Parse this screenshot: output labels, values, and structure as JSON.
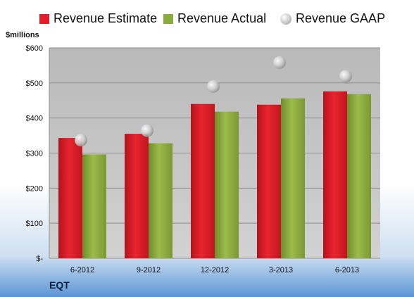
{
  "legend": {
    "estimate": "Revenue Estimate",
    "actual": "Revenue Actual",
    "gaap": "Revenue GAAP"
  },
  "units_label": "$millions",
  "brand": "EQT",
  "colors": {
    "estimate": "#e21e2b",
    "actual": "#8cab3e",
    "gaap": "#c8c8c8",
    "plot_background": "#c4c4c4"
  },
  "chart_data": {
    "type": "bar",
    "categories": [
      "6-2012",
      "9-2012",
      "12-2012",
      "3-2013",
      "6-2013"
    ],
    "series": [
      {
        "name": "Revenue Estimate",
        "values": [
          343,
          355,
          440,
          438,
          476
        ]
      },
      {
        "name": "Revenue Actual",
        "values": [
          296,
          328,
          418,
          456,
          468
        ]
      },
      {
        "name": "Revenue GAAP",
        "values": [
          337,
          364,
          490,
          558,
          519
        ]
      }
    ],
    "ylim": [
      0,
      600
    ],
    "yticks": [
      0,
      100,
      200,
      300,
      400,
      500,
      600
    ],
    "ytick_labels": [
      "$-",
      "$100",
      "$200",
      "$300",
      "$400",
      "$500",
      "$600"
    ],
    "ylabel": "$millions",
    "grid": true,
    "legend_position": "top"
  }
}
